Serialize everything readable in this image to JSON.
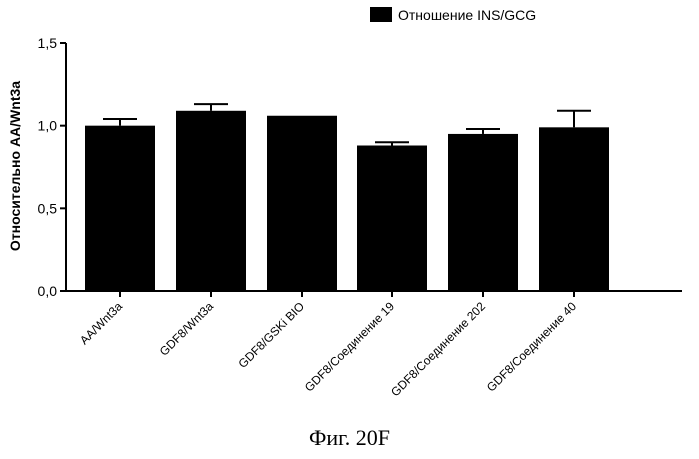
{
  "figure": {
    "caption": "Фиг. 20F"
  },
  "chart_data": {
    "type": "bar",
    "title": "",
    "xlabel": "",
    "ylabel": "Относительно AA/Wnt3a",
    "ylim": [
      0,
      1.5
    ],
    "yticks": [
      0,
      0.5,
      1.0,
      1.5
    ],
    "ytick_labels": [
      "0,0",
      "0,5",
      "1,0",
      "1,5"
    ],
    "categories": [
      "AA/Wnt3a",
      "GDF8/Wnt3a",
      "GDF8/GSKi BIO",
      "GDF8/Соединение 19",
      "GDF8/Соединение 202",
      "GDF8/Соединение 40"
    ],
    "series": [
      {
        "name": "Отношение INS/GCG",
        "color": "#000000",
        "values": [
          1.0,
          1.09,
          1.06,
          0.88,
          0.95,
          0.99
        ],
        "errors": [
          0.04,
          0.04,
          0.0,
          0.02,
          0.03,
          0.1
        ]
      }
    ],
    "grid": false,
    "legend_position": "top-right"
  }
}
